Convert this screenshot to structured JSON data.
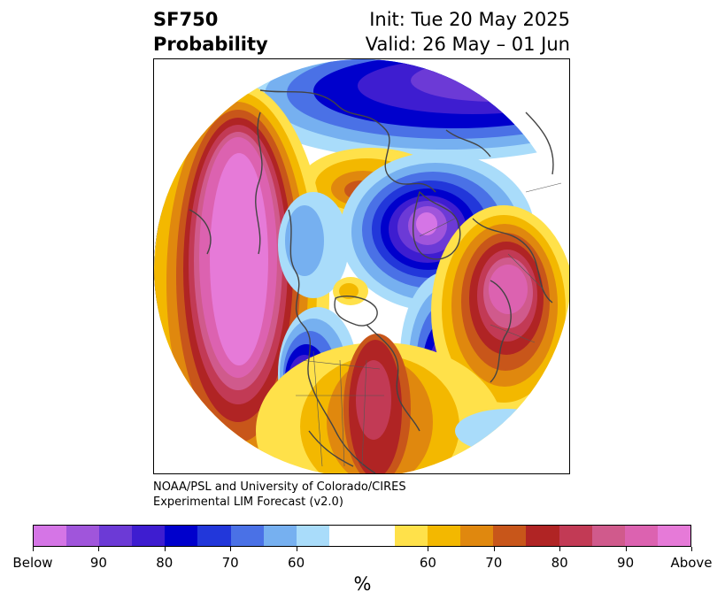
{
  "title": {
    "left_line1": "SF750",
    "left_line2": "Probability",
    "right_line1": "Init: Tue 20 May 2025",
    "right_line2": "Valid: 26 May – 01 Jun"
  },
  "credit": {
    "line1": "NOAA/PSL and University of Colorado/CIRES",
    "line2": "Experimental LIM Forecast (v2.0)"
  },
  "colorbar": {
    "unit": "%",
    "segments": [
      "#d575e6",
      "#a055db",
      "#6c3ad6",
      "#3e1dd0",
      "#0000cc",
      "#2237da",
      "#4a71e6",
      "#76b0f0",
      "#a9dcfa",
      "#ffffff",
      "#ffffff",
      "#ffe14a",
      "#f3b800",
      "#e0880e",
      "#c8561a",
      "#b02424",
      "#c23a55",
      "#d05a8c",
      "#dc62b0",
      "#e67ad8"
    ],
    "tick_labels": [
      "Below",
      "90",
      "80",
      "70",
      "60",
      "60",
      "70",
      "80",
      "90",
      "Above"
    ]
  },
  "map": {
    "projection": "polar stereographic, Northern Hemisphere",
    "colors": {
      "magenta_above": "#e67ad8",
      "pink": "#dc62b0",
      "crimson": "#b02424",
      "orange": "#e0880e",
      "gold": "#f3b800",
      "yellow": "#ffe14a",
      "lightblue": "#a9dcfa",
      "skyblue": "#76b0f0",
      "blue": "#4a71e6",
      "deepblue": "#0000cc",
      "indigo": "#3e1dd0",
      "purple": "#a055db",
      "violet_below": "#d575e6"
    }
  }
}
